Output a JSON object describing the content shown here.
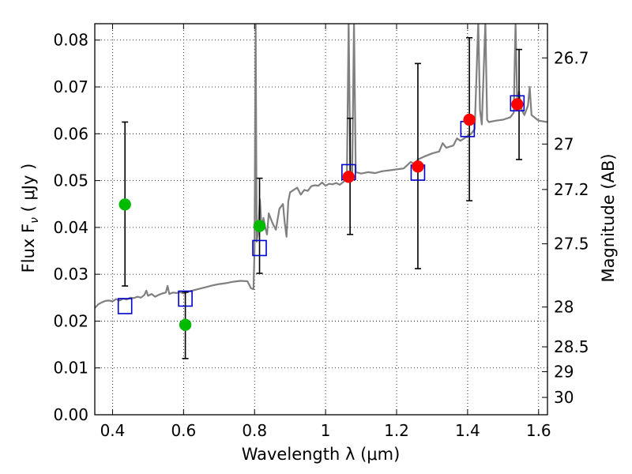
{
  "chart_data": {
    "type": "scatter",
    "xlabel": "Wavelength  λ (μm)",
    "ylabel": "Flux  F",
    "ylabel_sub": "ν",
    "ylabel_unit": "  ( μJy )",
    "ylabel_right": "Magnitude (AB)",
    "xlim": [
      0.35,
      1.625
    ],
    "ylim": [
      0.0,
      0.0835
    ],
    "grid": true,
    "x_ticks": [
      0.4,
      0.6,
      0.8,
      1.0,
      1.2,
      1.4,
      1.6
    ],
    "x_tick_labels": [
      "0.4",
      "0.6",
      "0.8",
      "1",
      "1.2",
      "1.4",
      "1.6"
    ],
    "y_ticks": [
      0.0,
      0.01,
      0.02,
      0.03,
      0.04,
      0.05,
      0.06,
      0.07,
      0.08
    ],
    "y_tick_labels": [
      "0.00",
      "0.01",
      "0.02",
      "0.03",
      "0.04",
      "0.05",
      "0.06",
      "0.07",
      "0.08"
    ],
    "mag_ticks": [
      {
        "label": "26.7",
        "flux": 0.0762
      },
      {
        "label": "27",
        "flux": 0.0578
      },
      {
        "label": "27.2",
        "flux": 0.0481
      },
      {
        "label": "27.5",
        "flux": 0.0365
      },
      {
        "label": "28",
        "flux": 0.023
      },
      {
        "label": "28.5",
        "flux": 0.0145
      },
      {
        "label": "29",
        "flux": 0.0092
      },
      {
        "label": "30",
        "flux": 0.0037
      }
    ],
    "series": [
      {
        "kind": "model_spectrum",
        "color": "#808080",
        "points": [
          [
            0.35,
            0.0228
          ],
          [
            0.36,
            0.0236
          ],
          [
            0.37,
            0.024
          ],
          [
            0.38,
            0.0243
          ],
          [
            0.39,
            0.0244
          ],
          [
            0.4,
            0.0242
          ],
          [
            0.41,
            0.0247
          ],
          [
            0.42,
            0.0244
          ],
          [
            0.43,
            0.0248
          ],
          [
            0.44,
            0.0246
          ],
          [
            0.45,
            0.025
          ],
          [
            0.46,
            0.0249
          ],
          [
            0.47,
            0.0252
          ],
          [
            0.48,
            0.025
          ],
          [
            0.49,
            0.0256
          ],
          [
            0.495,
            0.0265
          ],
          [
            0.5,
            0.0254
          ],
          [
            0.51,
            0.0258
          ],
          [
            0.52,
            0.0252
          ],
          [
            0.53,
            0.0256
          ],
          [
            0.54,
            0.0259
          ],
          [
            0.55,
            0.0261
          ],
          [
            0.555,
            0.0275
          ],
          [
            0.56,
            0.0258
          ],
          [
            0.57,
            0.0261
          ],
          [
            0.58,
            0.026
          ],
          [
            0.59,
            0.0262
          ],
          [
            0.6,
            0.0259
          ],
          [
            0.62,
            0.0264
          ],
          [
            0.64,
            0.0268
          ],
          [
            0.66,
            0.0272
          ],
          [
            0.68,
            0.0276
          ],
          [
            0.7,
            0.0279
          ],
          [
            0.72,
            0.0281
          ],
          [
            0.74,
            0.0284
          ],
          [
            0.76,
            0.0286
          ],
          [
            0.78,
            0.0285
          ],
          [
            0.79,
            0.027
          ],
          [
            0.797,
            0.0268
          ],
          [
            0.8,
            0.0355
          ],
          [
            0.803,
            0.084
          ],
          [
            0.806,
            0.037
          ],
          [
            0.81,
            0.039
          ],
          [
            0.815,
            0.046
          ],
          [
            0.82,
            0.0395
          ],
          [
            0.825,
            0.042
          ],
          [
            0.83,
            0.04
          ],
          [
            0.835,
            0.0385
          ],
          [
            0.84,
            0.043
          ],
          [
            0.85,
            0.041
          ],
          [
            0.86,
            0.0395
          ],
          [
            0.87,
            0.044
          ],
          [
            0.88,
            0.045
          ],
          [
            0.885,
            0.041
          ],
          [
            0.89,
            0.038
          ],
          [
            0.895,
            0.0455
          ],
          [
            0.9,
            0.0475
          ],
          [
            0.91,
            0.048
          ],
          [
            0.92,
            0.0485
          ],
          [
            0.93,
            0.047
          ],
          [
            0.94,
            0.048
          ],
          [
            0.95,
            0.0478
          ],
          [
            0.96,
            0.0488
          ],
          [
            0.97,
            0.049
          ],
          [
            0.98,
            0.0489
          ],
          [
            0.99,
            0.0496
          ],
          [
            1.0,
            0.0489
          ],
          [
            1.01,
            0.0493
          ],
          [
            1.02,
            0.0492
          ],
          [
            1.03,
            0.0495
          ],
          [
            1.04,
            0.0491
          ],
          [
            1.05,
            0.0497
          ],
          [
            1.06,
            0.0505
          ],
          [
            1.065,
            0.084
          ],
          [
            1.07,
            0.0508
          ],
          [
            1.075,
            0.0512
          ],
          [
            1.08,
            0.084
          ],
          [
            1.085,
            0.0518
          ],
          [
            1.1,
            0.0515
          ],
          [
            1.12,
            0.0518
          ],
          [
            1.14,
            0.0516
          ],
          [
            1.16,
            0.052
          ],
          [
            1.18,
            0.0522
          ],
          [
            1.2,
            0.0524
          ],
          [
            1.22,
            0.0526
          ],
          [
            1.24,
            0.054
          ],
          [
            1.25,
            0.0535
          ],
          [
            1.26,
            0.0545
          ],
          [
            1.28,
            0.0552
          ],
          [
            1.3,
            0.0558
          ],
          [
            1.32,
            0.0562
          ],
          [
            1.33,
            0.058
          ],
          [
            1.34,
            0.057
          ],
          [
            1.36,
            0.0575
          ],
          [
            1.37,
            0.059
          ],
          [
            1.38,
            0.0585
          ],
          [
            1.4,
            0.0595
          ],
          [
            1.41,
            0.06
          ],
          [
            1.42,
            0.061
          ],
          [
            1.43,
            0.084
          ],
          [
            1.435,
            0.065
          ],
          [
            1.44,
            0.062
          ],
          [
            1.45,
            0.084
          ],
          [
            1.455,
            0.063
          ],
          [
            1.46,
            0.0625
          ],
          [
            1.48,
            0.0628
          ],
          [
            1.5,
            0.063
          ],
          [
            1.52,
            0.0635
          ],
          [
            1.53,
            0.0645
          ],
          [
            1.535,
            0.084
          ],
          [
            1.54,
            0.066
          ],
          [
            1.545,
            0.069
          ],
          [
            1.55,
            0.0655
          ],
          [
            1.56,
            0.064
          ],
          [
            1.57,
            0.066
          ],
          [
            1.575,
            0.07
          ],
          [
            1.58,
            0.064
          ],
          [
            1.6,
            0.0628
          ],
          [
            1.625,
            0.0625
          ]
        ]
      },
      {
        "kind": "model_photometry",
        "color": "#0000cc",
        "points": [
          [
            0.435,
            0.0232
          ],
          [
            0.605,
            0.0248
          ],
          [
            0.814,
            0.0356
          ],
          [
            1.065,
            0.0518
          ],
          [
            1.26,
            0.0517
          ],
          [
            1.4,
            0.061
          ],
          [
            1.54,
            0.0665
          ]
        ]
      },
      {
        "kind": "detections",
        "color": "#ff0000",
        "points": [
          [
            1.065,
            0.0508
          ],
          [
            1.26,
            0.053
          ],
          [
            1.405,
            0.063
          ],
          [
            1.54,
            0.0663
          ]
        ]
      },
      {
        "kind": "nondetections",
        "color": "#00bb00",
        "points": [
          [
            0.435,
            0.0449
          ],
          [
            0.605,
            0.0192
          ],
          [
            0.814,
            0.0403
          ]
        ]
      }
    ],
    "error_bars": [
      {
        "x": 0.435,
        "low": 0.0275,
        "high": 0.0625
      },
      {
        "x": 0.605,
        "low": 0.012,
        "high": 0.0262
      },
      {
        "x": 0.814,
        "low": 0.0302,
        "high": 0.0505
      },
      {
        "x": 1.069,
        "low": 0.0385,
        "high": 0.0633
      },
      {
        "x": 1.26,
        "low": 0.0312,
        "high": 0.075
      },
      {
        "x": 1.405,
        "low": 0.0457,
        "high": 0.0805
      },
      {
        "x": 1.545,
        "low": 0.0545,
        "high": 0.078
      }
    ]
  }
}
